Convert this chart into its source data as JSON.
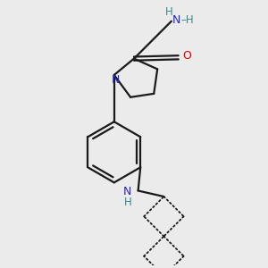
{
  "bg_color": "#ebebeb",
  "bond_color": "#1a1a1a",
  "N_color": "#2525cc",
  "O_color": "#dd0000",
  "H_color": "#3a8888",
  "line_width": 1.6,
  "dotted_lw": 1.3,
  "fig_size": [
    3.0,
    3.0
  ],
  "dpi": 100,
  "xlim": [
    20,
    220
  ],
  "ylim": [
    5,
    230
  ]
}
